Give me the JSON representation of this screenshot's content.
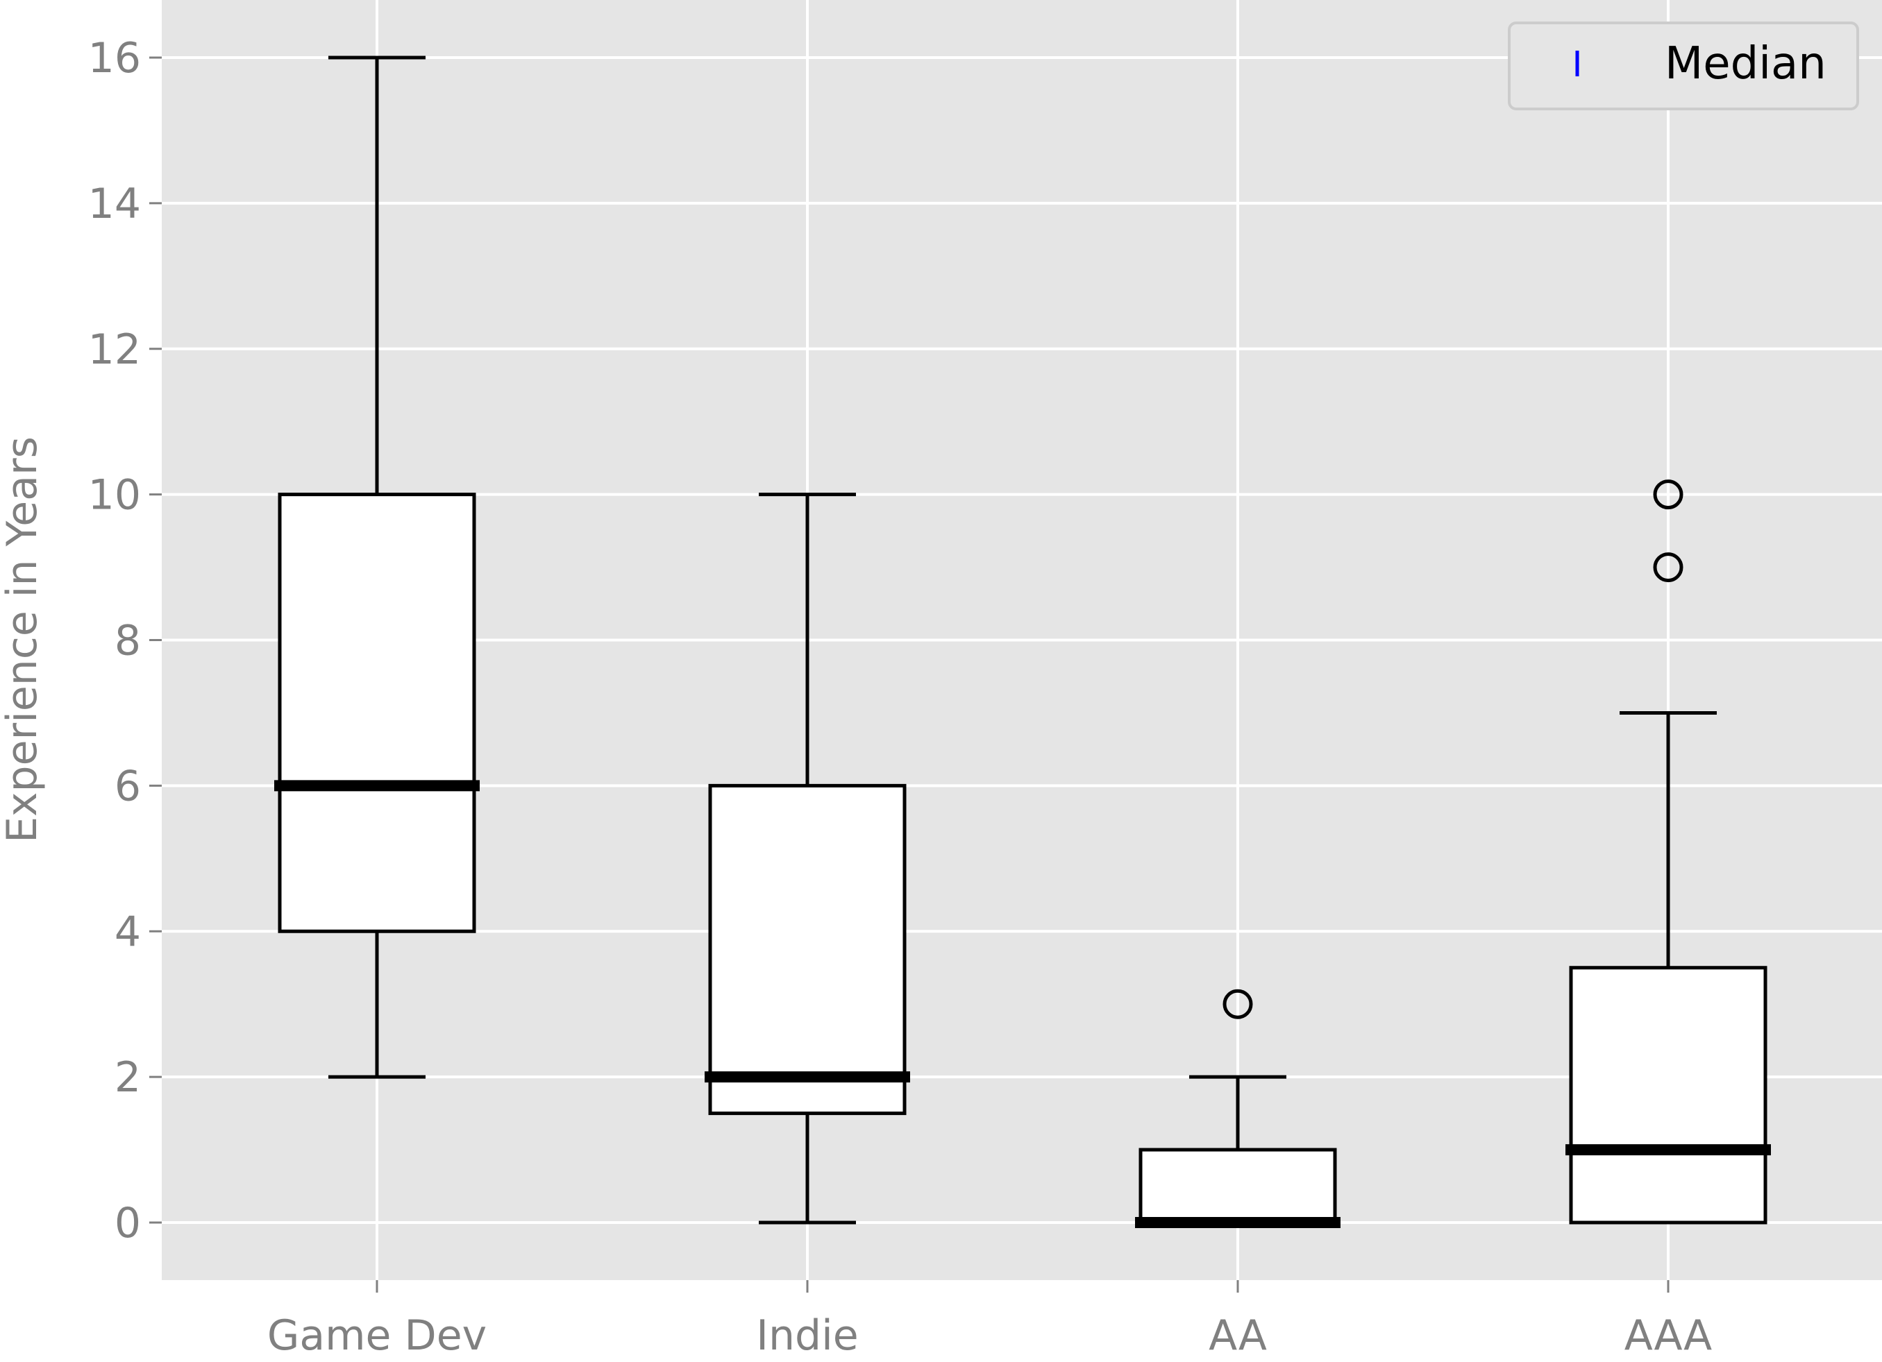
{
  "chart_data": {
    "type": "box",
    "title": "",
    "xlabel": "",
    "ylabel": "Experience in Years",
    "ylim": [
      -0.8,
      16.8
    ],
    "yticks": [
      0,
      2,
      4,
      6,
      8,
      10,
      12,
      14,
      16
    ],
    "categories": [
      "Game Dev",
      "Indie",
      "AA",
      "AAA"
    ],
    "boxes": [
      {
        "category": "Game Dev",
        "whisker_low": 2,
        "q1": 4,
        "median": 6,
        "q3": 10,
        "whisker_high": 16,
        "outliers": []
      },
      {
        "category": "Indie",
        "whisker_low": 0,
        "q1": 1.5,
        "median": 2,
        "q3": 6,
        "whisker_high": 10,
        "outliers": []
      },
      {
        "category": "AA",
        "whisker_low": 0,
        "q1": 0,
        "median": 0,
        "q3": 1,
        "whisker_high": 2,
        "outliers": [
          3
        ]
      },
      {
        "category": "AAA",
        "whisker_low": 0,
        "q1": 0,
        "median": 1,
        "q3": 3.5,
        "whisker_high": 7,
        "outliers": [
          9,
          10
        ]
      }
    ],
    "legend": {
      "label": "Median",
      "marker_color": "#0000ff",
      "placement": "top-right"
    },
    "grid": true,
    "colors": {
      "background": "#e5e5e5",
      "grid": "#ffffff",
      "box_fill": "#ffffff",
      "line": "#000000",
      "text": "#808080"
    }
  }
}
